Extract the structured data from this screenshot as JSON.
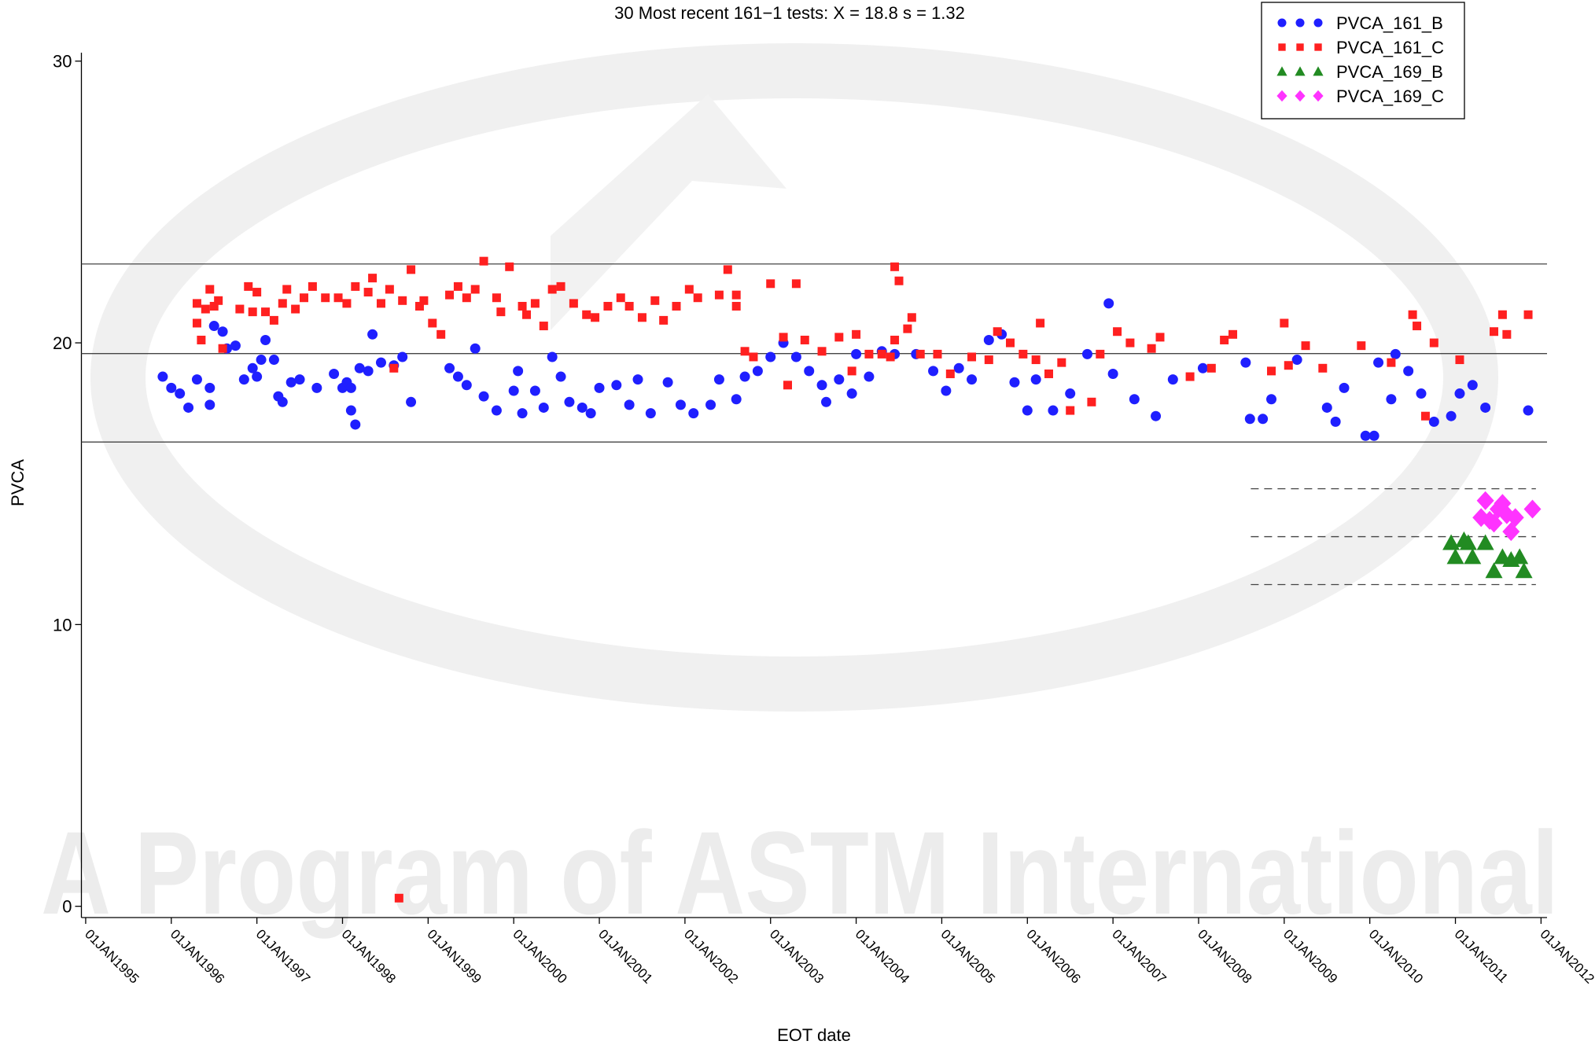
{
  "chart_data": {
    "type": "scatter",
    "title": "30 Most recent 161−1 tests: X =  18.8 s =  1.32",
    "x_label": "EOT date",
    "y_label": "PVCA",
    "watermark": "A Program of ASTM International",
    "legend": "top-right",
    "grid": false,
    "xlim": [
      1994.95,
      2012.07
    ],
    "ylim": [
      -0.4,
      30.3
    ],
    "yticks": [
      0,
      10,
      20,
      30
    ],
    "xticks": [
      {
        "value": 1995,
        "label": "01JAN1995"
      },
      {
        "value": 1996,
        "label": "01JAN1996"
      },
      {
        "value": 1997,
        "label": "01JAN1997"
      },
      {
        "value": 1998,
        "label": "01JAN1998"
      },
      {
        "value": 1999,
        "label": "01JAN1999"
      },
      {
        "value": 2000,
        "label": "01JAN2000"
      },
      {
        "value": 2001,
        "label": "01JAN2001"
      },
      {
        "value": 2002,
        "label": "01JAN2002"
      },
      {
        "value": 2003,
        "label": "01JAN2003"
      },
      {
        "value": 2004,
        "label": "01JAN2004"
      },
      {
        "value": 2005,
        "label": "01JAN2005"
      },
      {
        "value": 2006,
        "label": "01JAN2006"
      },
      {
        "value": 2007,
        "label": "01JAN2007"
      },
      {
        "value": 2008,
        "label": "01JAN2008"
      },
      {
        "value": 2009,
        "label": "01JAN2009"
      },
      {
        "value": 2010,
        "label": "01JAN2010"
      },
      {
        "value": 2011,
        "label": "01JAN2011"
      },
      {
        "value": 2012,
        "label": "01JAN2012"
      }
    ],
    "reference_lines": [
      {
        "value": 22.8,
        "style": "solid"
      },
      {
        "value": 19.62,
        "style": "solid"
      },
      {
        "value": 16.48,
        "style": "solid"
      },
      {
        "value": 14.82,
        "style": "dashed",
        "xrange": [
          2008.61,
          2011.94
        ]
      },
      {
        "value": 13.12,
        "style": "dashed",
        "xrange": [
          2008.61,
          2011.94
        ]
      },
      {
        "value": 11.42,
        "style": "dashed",
        "xrange": [
          2008.61,
          2011.94
        ]
      }
    ],
    "series": [
      {
        "name": "PVCA_161_B",
        "color": "#1f1fff",
        "marker": "circle",
        "x": [
          1995.9,
          1996.0,
          1996.1,
          1996.2,
          1996.3,
          1996.45,
          1996.45,
          1996.5,
          1996.6,
          1996.65,
          1996.75,
          1996.85,
          1996.95,
          1997.0,
          1997.05,
          1997.1,
          1997.2,
          1997.25,
          1997.3,
          1997.4,
          1997.5,
          1997.7,
          1997.9,
          1998.0,
          1998.05,
          1998.1,
          1998.15,
          1998.1,
          1998.2,
          1998.3,
          1998.35,
          1998.45,
          1998.6,
          1998.7,
          1998.8,
          1999.25,
          1999.35,
          1999.45,
          1999.55,
          1999.65,
          1999.8,
          2000.0,
          2000.05,
          2000.1,
          2000.25,
          2000.35,
          2000.45,
          2000.55,
          2000.65,
          2000.8,
          2000.9,
          2001.0,
          2001.2,
          2001.35,
          2001.45,
          2001.6,
          2001.8,
          2001.95,
          2002.1,
          2002.3,
          2002.4,
          2002.6,
          2002.7,
          2002.85,
          2003.0,
          2003.15,
          2003.3,
          2003.45,
          2003.6,
          2003.65,
          2003.8,
          2003.95,
          2004.0,
          2004.15,
          2004.3,
          2004.45,
          2004.7,
          2004.9,
          2005.05,
          2005.2,
          2005.35,
          2005.55,
          2005.7,
          2005.85,
          2006.0,
          2006.1,
          2006.3,
          2006.5,
          2006.7,
          2006.95,
          2007.0,
          2007.25,
          2007.5,
          2007.7,
          2008.05,
          2008.55,
          2008.6,
          2008.75,
          2008.85,
          2009.15,
          2009.5,
          2009.6,
          2009.7,
          2009.95,
          2010.05,
          2010.1,
          2010.3,
          2010.25,
          2010.45,
          2010.6,
          2010.75,
          2010.95,
          2011.05,
          2011.2,
          2011.35,
          2011.85
        ],
        "values": [
          18.8,
          18.4,
          18.2,
          17.7,
          18.7,
          17.8,
          18.4,
          20.6,
          20.4,
          19.8,
          19.9,
          18.7,
          19.1,
          18.8,
          19.4,
          20.1,
          19.4,
          18.1,
          17.9,
          18.6,
          18.7,
          18.4,
          18.9,
          18.4,
          18.6,
          17.6,
          17.1,
          18.4,
          19.1,
          19.0,
          20.3,
          19.3,
          19.2,
          19.5,
          17.9,
          19.1,
          18.8,
          18.5,
          19.8,
          18.1,
          17.6,
          18.3,
          19.0,
          17.5,
          18.3,
          17.7,
          19.5,
          18.8,
          17.9,
          17.7,
          17.5,
          18.4,
          18.5,
          17.8,
          18.7,
          17.5,
          18.6,
          17.8,
          17.5,
          17.8,
          18.7,
          18.0,
          18.8,
          19.0,
          19.5,
          20.0,
          19.5,
          19.0,
          18.5,
          17.9,
          18.7,
          18.2,
          19.6,
          18.8,
          19.7,
          19.6,
          19.6,
          19.0,
          18.3,
          19.1,
          18.7,
          20.1,
          20.3,
          18.6,
          17.6,
          18.7,
          17.6,
          18.2,
          19.6,
          21.4,
          18.9,
          18.0,
          17.4,
          18.7,
          19.1,
          19.3,
          17.3,
          17.3,
          18.0,
          19.4,
          17.7,
          17.2,
          18.4,
          16.7,
          16.7,
          19.3,
          19.6,
          18.0,
          19.0,
          18.2,
          17.2,
          17.4,
          18.2,
          18.5,
          17.7,
          17.6
        ]
      },
      {
        "name": "PVCA_161_C",
        "color": "#ff2020",
        "marker": "square",
        "x": [
          1996.3,
          1996.3,
          1996.35,
          1996.4,
          1996.45,
          1996.5,
          1996.55,
          1996.6,
          1996.8,
          1996.9,
          1996.95,
          1997.0,
          1997.1,
          1997.2,
          1997.3,
          1997.35,
          1997.45,
          1997.55,
          1997.65,
          1997.8,
          1997.95,
          1998.05,
          1998.15,
          1998.3,
          1998.35,
          1998.45,
          1998.55,
          1998.6,
          1998.7,
          1998.8,
          1998.9,
          1998.95,
          1999.05,
          1999.15,
          1999.25,
          1999.35,
          1999.45,
          1999.55,
          1999.65,
          1999.8,
          1999.85,
          1999.95,
          2000.1,
          2000.15,
          2000.25,
          2000.35,
          2000.45,
          2000.55,
          2000.7,
          2000.85,
          2000.95,
          2001.1,
          2001.25,
          2001.35,
          2001.5,
          2001.65,
          2001.75,
          2001.9,
          2002.05,
          2002.15,
          2002.4,
          2002.5,
          2002.6,
          2002.6,
          2002.7,
          2002.8,
          2003.0,
          2003.15,
          2003.2,
          2003.3,
          2003.4,
          2003.6,
          2003.8,
          2003.95,
          2004.0,
          2004.15,
          2004.3,
          2004.4,
          2004.45,
          2004.45,
          2004.5,
          2004.6,
          2004.65,
          2004.75,
          2004.95,
          2005.1,
          2005.35,
          2005.55,
          2005.65,
          2005.8,
          2005.95,
          2006.1,
          2006.15,
          2006.25,
          2006.4,
          2006.5,
          2006.75,
          2006.85,
          2007.05,
          2007.2,
          2007.45,
          2007.55,
          2007.9,
          2008.15,
          2008.3,
          2008.4,
          2008.85,
          2009.0,
          2009.05,
          2009.25,
          2009.45,
          2009.9,
          2010.25,
          2010.5,
          2010.55,
          2010.65,
          2010.75,
          2011.05,
          2011.45,
          2011.55,
          2011.6,
          2011.85,
          1998.66
        ],
        "values": [
          20.7,
          21.4,
          20.1,
          21.2,
          21.9,
          21.3,
          21.5,
          19.8,
          21.2,
          22.0,
          21.1,
          21.8,
          21.1,
          20.8,
          21.4,
          21.9,
          21.2,
          21.6,
          22.0,
          21.6,
          21.6,
          21.4,
          22.0,
          21.8,
          22.3,
          21.4,
          21.9,
          19.1,
          21.5,
          22.6,
          21.3,
          21.5,
          20.7,
          20.3,
          21.7,
          22.0,
          21.6,
          21.9,
          22.9,
          21.6,
          21.1,
          22.7,
          21.3,
          21.0,
          21.4,
          20.6,
          21.9,
          22.0,
          21.4,
          21.0,
          20.9,
          21.3,
          21.6,
          21.3,
          20.9,
          21.5,
          20.8,
          21.3,
          21.9,
          21.6,
          21.7,
          22.6,
          21.3,
          21.7,
          19.7,
          19.5,
          22.1,
          20.2,
          18.5,
          22.1,
          20.1,
          19.7,
          20.2,
          19.0,
          20.3,
          19.6,
          19.6,
          19.5,
          20.1,
          22.7,
          22.2,
          20.5,
          20.9,
          19.6,
          19.6,
          18.9,
          19.5,
          19.4,
          20.4,
          20.0,
          19.6,
          19.4,
          20.7,
          18.9,
          19.3,
          17.6,
          17.9,
          19.6,
          20.4,
          20.0,
          19.8,
          20.2,
          18.8,
          19.1,
          20.1,
          20.3,
          19.0,
          20.7,
          19.2,
          19.9,
          19.1,
          19.9,
          19.3,
          21.0,
          20.6,
          17.4,
          20.0,
          19.4,
          20.4,
          21.0,
          20.3,
          21.0,
          0.29
        ]
      },
      {
        "name": "PVCA_169_B",
        "color": "#228b22",
        "marker": "triangle",
        "x": [
          2010.95,
          2011.0,
          2011.1,
          2011.15,
          2011.2,
          2011.35,
          2011.45,
          2011.55,
          2011.65,
          2011.75,
          2011.8
        ],
        "values": [
          12.9,
          12.4,
          13.0,
          12.9,
          12.4,
          12.9,
          11.9,
          12.4,
          12.3,
          12.4,
          11.9
        ]
      },
      {
        "name": "PVCA_169_C",
        "color": "#ff33ff",
        "marker": "diamond",
        "x": [
          2011.3,
          2011.35,
          2011.45,
          2011.5,
          2011.55,
          2011.6,
          2011.65,
          2011.7,
          2011.9,
          2011.4
        ],
        "values": [
          13.8,
          14.4,
          13.6,
          14.1,
          14.3,
          13.9,
          13.3,
          13.8,
          14.1,
          13.7
        ]
      }
    ]
  }
}
